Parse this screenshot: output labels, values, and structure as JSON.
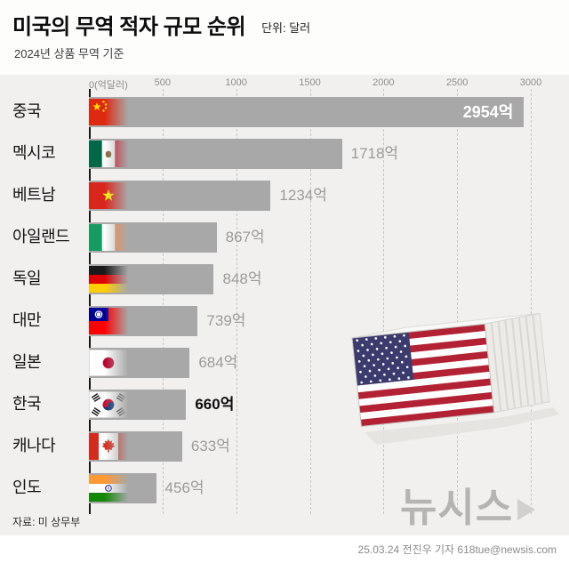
{
  "header": {
    "title": "미국의 무역 적자 규모 순위",
    "unit": "단위: 달러",
    "subtitle": "2024년 상품 무역 기준"
  },
  "chart_data": {
    "type": "bar",
    "orientation": "horizontal",
    "title": "미국의 무역 적자 규모 순위",
    "unit": "억 달러",
    "categories": [
      "중국",
      "멕시코",
      "베트남",
      "아일랜드",
      "독일",
      "대만",
      "일본",
      "한국",
      "캐나다",
      "인도"
    ],
    "values": [
      2954,
      1718,
      1234,
      867,
      848,
      739,
      684,
      660,
      633,
      456
    ],
    "value_labels": [
      "2954억",
      "1718억",
      "1234억",
      "867억",
      "848억",
      "739억",
      "684억",
      "660억",
      "633억",
      "456억"
    ],
    "flags": [
      "cn",
      "mx",
      "vn",
      "ie",
      "de",
      "tw",
      "jp",
      "kr",
      "ca",
      "in"
    ],
    "flag_names": [
      "china-flag",
      "mexico-flag",
      "vietnam-flag",
      "ireland-flag",
      "germany-flag",
      "taiwan-flag",
      "japan-flag",
      "south-korea-flag",
      "canada-flag",
      "india-flag"
    ],
    "highlight_index": 7,
    "x_ticks": [
      "0(억달러)",
      "500",
      "1000",
      "1500",
      "2000",
      "2500",
      "3000"
    ],
    "x_tick_values": [
      0,
      500,
      1000,
      1500,
      2000,
      2500,
      3000
    ],
    "xlim": [
      0,
      3000
    ],
    "grid": "dashed-vertical",
    "bar_color": "#a8a8a8",
    "value_color": "#9b9b9b",
    "highlight_value_color": "#0d0d0d",
    "inside_value_color": "#ffffff"
  },
  "footer": {
    "source": "자료: 미 상무부",
    "credit": "25.03.24 전진우 기자 618tue@newsis.com",
    "logo": "뉴시스"
  }
}
